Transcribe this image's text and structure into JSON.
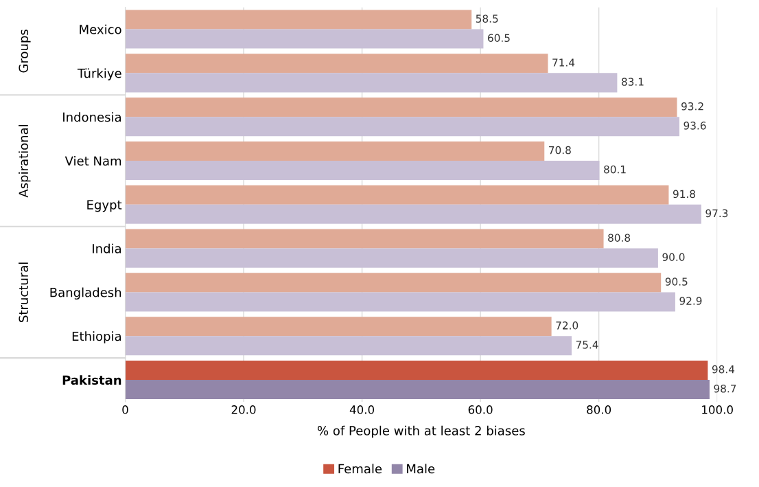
{
  "chart_data": {
    "type": "bar",
    "orientation": "horizontal",
    "xlabel": "% of People with at least 2 biases",
    "categories": [
      "Mexico",
      "Türkiye",
      "Indonesia",
      "Viet Nam",
      "Egypt",
      "India",
      "Bangladesh",
      "Ethiopia",
      "Pakistan"
    ],
    "series": [
      {
        "name": "Female",
        "color": "#c9553f",
        "colors": [
          "#e0aa96",
          "#e0aa96",
          "#e0aa96",
          "#e0aa96",
          "#e0aa96",
          "#e0aa96",
          "#e0aa96",
          "#e0aa96",
          "#c9553f"
        ],
        "values": [
          58.5,
          71.4,
          93.2,
          70.8,
          91.8,
          80.8,
          90.5,
          72.0,
          98.4
        ],
        "value_labels": [
          "58.5",
          "71.4",
          "93.2",
          "70.8",
          "91.8",
          "80.8",
          "90.5",
          "72.0",
          "98.4"
        ]
      },
      {
        "name": "Male",
        "color": "#9286a9",
        "colors": [
          "#c8bfd6",
          "#c8bfd6",
          "#c8bfd6",
          "#c8bfd6",
          "#c8bfd6",
          "#c8bfd6",
          "#c8bfd6",
          "#c8bfd6",
          "#9286a9"
        ],
        "values": [
          60.5,
          83.1,
          93.6,
          80.1,
          97.3,
          90.0,
          92.9,
          75.4,
          98.7
        ],
        "value_labels": [
          "60.5",
          "83.1",
          "93.6",
          "80.1",
          "97.3",
          "90.0",
          "92.9",
          "75.4",
          "98.7"
        ]
      }
    ],
    "xlim": [
      0,
      100
    ],
    "xticks": [
      0,
      {
        "value": 20,
        "label": "20.0"
      },
      {
        "value": 40,
        "label": "40.0"
      },
      {
        "value": 60,
        "label": "60.0"
      },
      {
        "value": 80,
        "label": "80.0"
      },
      {
        "value": 100,
        "label": "100.0"
      }
    ],
    "grid": "x",
    "legend": "bottom",
    "annotations": [
      "Groups",
      "Aspirational",
      "Structural"
    ]
  }
}
